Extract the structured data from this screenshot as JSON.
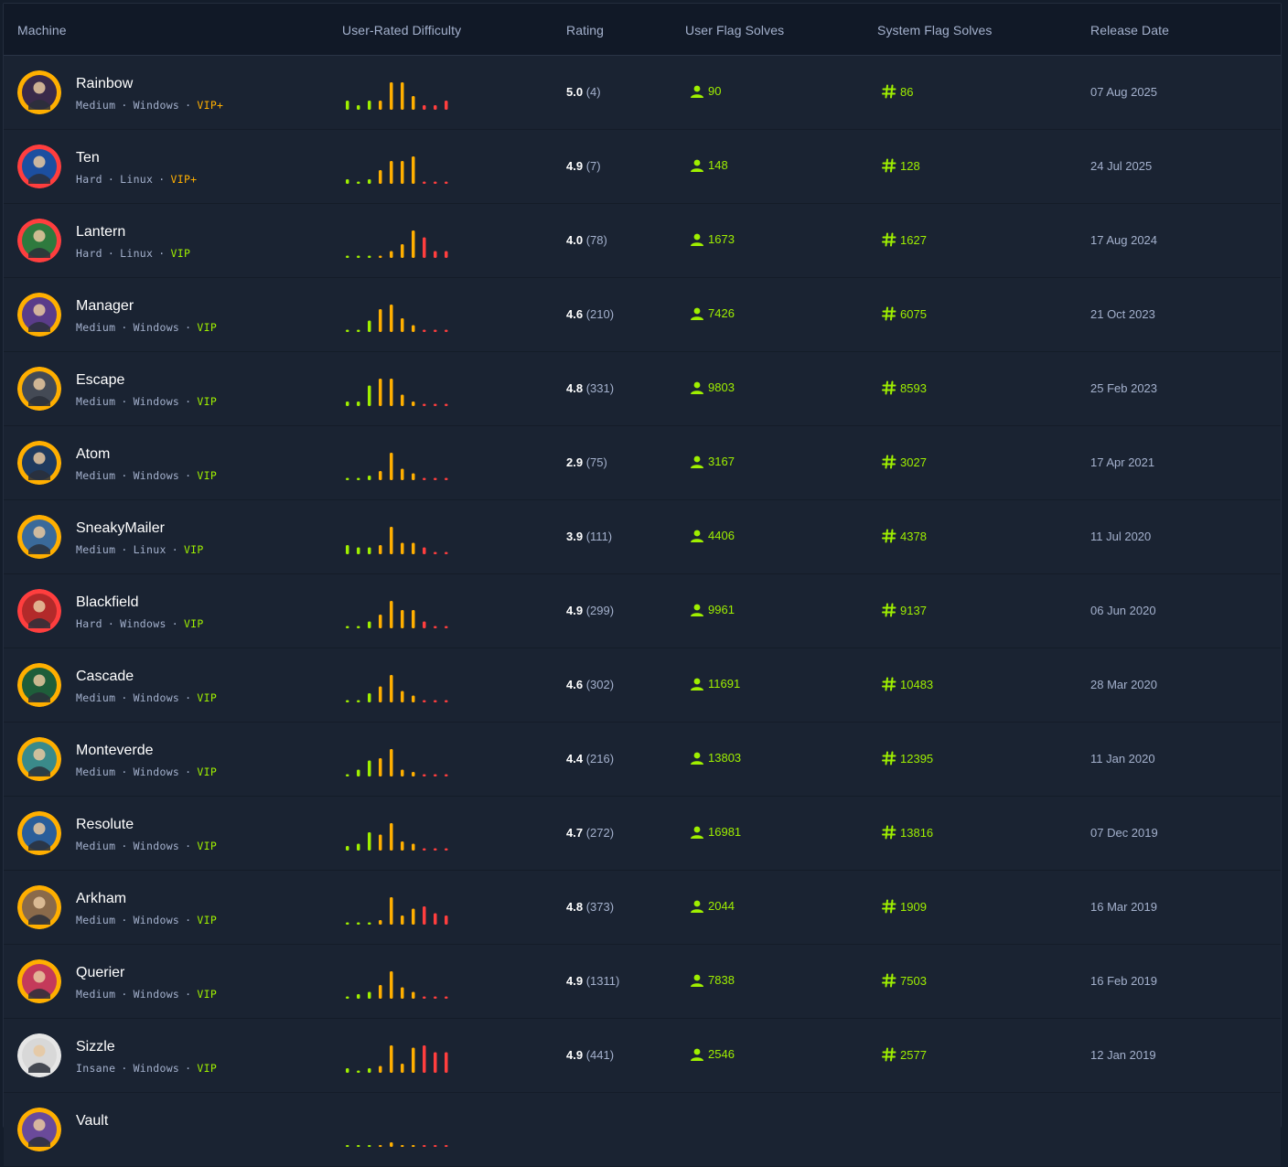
{
  "columns": {
    "machine": "Machine",
    "difficulty": "User-Rated Difficulty",
    "rating": "Rating",
    "user_solves": "User Flag Solves",
    "system_solves": "System Flag Solves",
    "release_date": "Release Date"
  },
  "colors": {
    "green": "#9fef00",
    "orange": "#ffaf00",
    "red": "#ff3e3e",
    "vip_plus": "#ffaf00"
  },
  "machines": [
    {
      "name": "Rainbow",
      "difficulty": "Medium",
      "os": "Windows",
      "tier": "VIP+",
      "rating": "5.0",
      "votes": "(4)",
      "user_solves": "90",
      "system_solves": "86",
      "release_date": "07 Aug 2025",
      "avatar_color": "#3a2a4a",
      "ring": "#ffaf00",
      "difficulty_chart": [
        2,
        1,
        2,
        2,
        6,
        6,
        3,
        1,
        1,
        2
      ]
    },
    {
      "name": "Ten",
      "difficulty": "Hard",
      "os": "Linux",
      "tier": "VIP+",
      "rating": "4.9",
      "votes": "(7)",
      "user_solves": "148",
      "system_solves": "128",
      "release_date": "24 Jul 2025",
      "avatar_color": "#1c4fa0",
      "ring": "#ff3e3e",
      "difficulty_chart": [
        1,
        0.5,
        1,
        3,
        5,
        5,
        6,
        0.5,
        0.5,
        0.5
      ]
    },
    {
      "name": "Lantern",
      "difficulty": "Hard",
      "os": "Linux",
      "tier": "VIP",
      "rating": "4.0",
      "votes": "(78)",
      "user_solves": "1673",
      "system_solves": "1627",
      "release_date": "17 Aug 2024",
      "avatar_color": "#2e7a3e",
      "ring": "#ff3e3e",
      "difficulty_chart": [
        0.5,
        0.5,
        0.5,
        0.5,
        1.5,
        3,
        6,
        4.5,
        1.5,
        1.5
      ]
    },
    {
      "name": "Manager",
      "difficulty": "Medium",
      "os": "Windows",
      "tier": "VIP",
      "rating": "4.6",
      "votes": "(210)",
      "user_solves": "7426",
      "system_solves": "6075",
      "release_date": "21 Oct 2023",
      "avatar_color": "#5a3c8a",
      "ring": "#ffaf00",
      "difficulty_chart": [
        0.5,
        0.5,
        2.5,
        5,
        6,
        3,
        1.5,
        0.5,
        0.5,
        0.5
      ]
    },
    {
      "name": "Escape",
      "difficulty": "Medium",
      "os": "Windows",
      "tier": "VIP",
      "rating": "4.8",
      "votes": "(331)",
      "user_solves": "9803",
      "system_solves": "8593",
      "release_date": "25 Feb 2023",
      "avatar_color": "#444a55",
      "ring": "#ffaf00",
      "difficulty_chart": [
        1,
        1,
        4.5,
        6,
        6,
        2.5,
        1,
        0.5,
        0.5,
        0.5
      ]
    },
    {
      "name": "Atom",
      "difficulty": "Medium",
      "os": "Windows",
      "tier": "VIP",
      "rating": "2.9",
      "votes": "(75)",
      "user_solves": "3167",
      "system_solves": "3027",
      "release_date": "17 Apr 2021",
      "avatar_color": "#1f3a5e",
      "ring": "#ffaf00",
      "difficulty_chart": [
        0.5,
        0.5,
        1,
        2,
        6,
        2.5,
        1.5,
        0.5,
        0.5,
        0.5
      ]
    },
    {
      "name": "SneakyMailer",
      "difficulty": "Medium",
      "os": "Linux",
      "tier": "VIP",
      "rating": "3.9",
      "votes": "(111)",
      "user_solves": "4406",
      "system_solves": "4378",
      "release_date": "11 Jul 2020",
      "avatar_color": "#3a6a9a",
      "ring": "#ffaf00",
      "difficulty_chart": [
        2,
        1.5,
        1.5,
        2,
        6,
        2.5,
        2.5,
        1.5,
        0.5,
        0.5
      ]
    },
    {
      "name": "Blackfield",
      "difficulty": "Hard",
      "os": "Windows",
      "tier": "VIP",
      "rating": "4.9",
      "votes": "(299)",
      "user_solves": "9961",
      "system_solves": "9137",
      "release_date": "06 Jun 2020",
      "avatar_color": "#b32a2a",
      "ring": "#ff3e3e",
      "difficulty_chart": [
        0.5,
        0.5,
        1.5,
        3,
        6,
        4,
        4,
        1.5,
        0.5,
        0.5
      ]
    },
    {
      "name": "Cascade",
      "difficulty": "Medium",
      "os": "Windows",
      "tier": "VIP",
      "rating": "4.6",
      "votes": "(302)",
      "user_solves": "11691",
      "system_solves": "10483",
      "release_date": "28 Mar 2020",
      "avatar_color": "#1e5e3a",
      "ring": "#ffaf00",
      "difficulty_chart": [
        0.5,
        0.5,
        2,
        3.5,
        6,
        2.5,
        1.5,
        0.5,
        0.5,
        0.5
      ]
    },
    {
      "name": "Monteverde",
      "difficulty": "Medium",
      "os": "Windows",
      "tier": "VIP",
      "rating": "4.4",
      "votes": "(216)",
      "user_solves": "13803",
      "system_solves": "12395",
      "release_date": "11 Jan 2020",
      "avatar_color": "#3a8a8a",
      "ring": "#ffaf00",
      "difficulty_chart": [
        0.5,
        1.5,
        3.5,
        4,
        6,
        1.5,
        1,
        0.5,
        0.5,
        0.5
      ]
    },
    {
      "name": "Resolute",
      "difficulty": "Medium",
      "os": "Windows",
      "tier": "VIP",
      "rating": "4.7",
      "votes": "(272)",
      "user_solves": "16981",
      "system_solves": "13816",
      "release_date": "07 Dec 2019",
      "avatar_color": "#2a5e9a",
      "ring": "#ffaf00",
      "difficulty_chart": [
        1,
        1.5,
        4,
        3.5,
        6,
        2,
        1.5,
        0.5,
        0.5,
        0.5
      ]
    },
    {
      "name": "Arkham",
      "difficulty": "Medium",
      "os": "Windows",
      "tier": "VIP",
      "rating": "4.8",
      "votes": "(373)",
      "user_solves": "2044",
      "system_solves": "1909",
      "release_date": "16 Mar 2019",
      "avatar_color": "#8a6a4a",
      "ring": "#ffaf00",
      "difficulty_chart": [
        0.5,
        0.5,
        0.5,
        1,
        6,
        2,
        3.5,
        4,
        2.5,
        2
      ]
    },
    {
      "name": "Querier",
      "difficulty": "Medium",
      "os": "Windows",
      "tier": "VIP",
      "rating": "4.9",
      "votes": "(1311)",
      "user_solves": "7838",
      "system_solves": "7503",
      "release_date": "16 Feb 2019",
      "avatar_color": "#c43a5a",
      "ring": "#ffaf00",
      "difficulty_chart": [
        0.5,
        1,
        1.5,
        3,
        6,
        2.5,
        1.5,
        0.5,
        0.5,
        0.5
      ]
    },
    {
      "name": "Sizzle",
      "difficulty": "Insane",
      "os": "Windows",
      "tier": "VIP",
      "rating": "4.9",
      "votes": "(441)",
      "user_solves": "2546",
      "system_solves": "2577",
      "release_date": "12 Jan 2019",
      "avatar_color": "#d8d8d8",
      "ring": "#e6e6e6",
      "difficulty_chart": [
        1,
        0.5,
        1,
        1.5,
        6,
        2,
        5.5,
        6,
        4.5,
        4.5
      ]
    },
    {
      "name": "Vault",
      "difficulty": "",
      "os": "",
      "tier": "",
      "rating": "",
      "votes": "",
      "user_solves": "",
      "system_solves": "",
      "release_date": "",
      "avatar_color": "#6a4a9a",
      "ring": "#ffaf00",
      "difficulty_chart": [
        0,
        0,
        0,
        0,
        1,
        0,
        0,
        0,
        0,
        0
      ]
    }
  ]
}
